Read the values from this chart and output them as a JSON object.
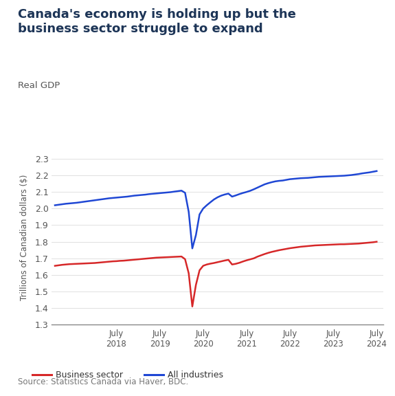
{
  "title": "Canada's economy is holding up but the\nbusiness sector struggle to expand",
  "subtitle": "Real GDP",
  "ylabel": "Trillions of Canadian dollars ($)",
  "source": "Source: Statistics Canada via Haver, BDC.",
  "title_color": "#1d3557",
  "subtitle_color": "#555555",
  "source_color": "#777777",
  "bg_color": "#ffffff",
  "ylim": [
    1.3,
    2.35
  ],
  "yticks": [
    1.3,
    1.4,
    1.5,
    1.6,
    1.7,
    1.8,
    1.9,
    2.0,
    2.1,
    2.2,
    2.3
  ],
  "line_blue_color": "#1f47d4",
  "line_red_color": "#d62728",
  "legend_labels": [
    "Business sector",
    "All industries"
  ],
  "all_industries": [
    [
      2017.083,
      2.02
    ],
    [
      2017.167,
      2.023
    ],
    [
      2017.25,
      2.026
    ],
    [
      2017.333,
      2.029
    ],
    [
      2017.417,
      2.031
    ],
    [
      2017.5,
      2.033
    ],
    [
      2017.583,
      2.035
    ],
    [
      2017.667,
      2.038
    ],
    [
      2017.75,
      2.041
    ],
    [
      2017.833,
      2.044
    ],
    [
      2017.917,
      2.047
    ],
    [
      2018.0,
      2.05
    ],
    [
      2018.083,
      2.053
    ],
    [
      2018.167,
      2.056
    ],
    [
      2018.25,
      2.059
    ],
    [
      2018.333,
      2.062
    ],
    [
      2018.417,
      2.064
    ],
    [
      2018.5,
      2.066
    ],
    [
      2018.583,
      2.068
    ],
    [
      2018.667,
      2.07
    ],
    [
      2018.75,
      2.072
    ],
    [
      2018.833,
      2.075
    ],
    [
      2018.917,
      2.078
    ],
    [
      2019.0,
      2.08
    ],
    [
      2019.083,
      2.082
    ],
    [
      2019.167,
      2.084
    ],
    [
      2019.25,
      2.087
    ],
    [
      2019.333,
      2.089
    ],
    [
      2019.417,
      2.091
    ],
    [
      2019.5,
      2.093
    ],
    [
      2019.583,
      2.095
    ],
    [
      2019.667,
      2.097
    ],
    [
      2019.75,
      2.099
    ],
    [
      2019.833,
      2.102
    ],
    [
      2019.917,
      2.105
    ],
    [
      2020.0,
      2.108
    ],
    [
      2020.083,
      2.095
    ],
    [
      2020.167,
      1.98
    ],
    [
      2020.25,
      1.76
    ],
    [
      2020.333,
      1.84
    ],
    [
      2020.417,
      1.965
    ],
    [
      2020.5,
      2.0
    ],
    [
      2020.583,
      2.02
    ],
    [
      2020.667,
      2.038
    ],
    [
      2020.75,
      2.055
    ],
    [
      2020.833,
      2.068
    ],
    [
      2020.917,
      2.078
    ],
    [
      2021.0,
      2.085
    ],
    [
      2021.083,
      2.09
    ],
    [
      2021.167,
      2.072
    ],
    [
      2021.25,
      2.079
    ],
    [
      2021.333,
      2.087
    ],
    [
      2021.417,
      2.094
    ],
    [
      2021.5,
      2.1
    ],
    [
      2021.583,
      2.107
    ],
    [
      2021.667,
      2.116
    ],
    [
      2021.75,
      2.126
    ],
    [
      2021.833,
      2.136
    ],
    [
      2021.917,
      2.146
    ],
    [
      2022.0,
      2.153
    ],
    [
      2022.083,
      2.159
    ],
    [
      2022.167,
      2.164
    ],
    [
      2022.25,
      2.167
    ],
    [
      2022.333,
      2.169
    ],
    [
      2022.417,
      2.173
    ],
    [
      2022.5,
      2.177
    ],
    [
      2022.583,
      2.179
    ],
    [
      2022.667,
      2.181
    ],
    [
      2022.75,
      2.183
    ],
    [
      2022.833,
      2.184
    ],
    [
      2022.917,
      2.185
    ],
    [
      2023.0,
      2.187
    ],
    [
      2023.083,
      2.189
    ],
    [
      2023.167,
      2.191
    ],
    [
      2023.25,
      2.192
    ],
    [
      2023.333,
      2.193
    ],
    [
      2023.417,
      2.194
    ],
    [
      2023.5,
      2.195
    ],
    [
      2023.583,
      2.196
    ],
    [
      2023.667,
      2.197
    ],
    [
      2023.75,
      2.198
    ],
    [
      2023.833,
      2.2
    ],
    [
      2023.917,
      2.202
    ],
    [
      2024.0,
      2.205
    ],
    [
      2024.083,
      2.208
    ],
    [
      2024.167,
      2.212
    ],
    [
      2024.25,
      2.215
    ],
    [
      2024.333,
      2.218
    ],
    [
      2024.417,
      2.222
    ],
    [
      2024.5,
      2.226
    ]
  ],
  "business_sector": [
    [
      2017.083,
      1.655
    ],
    [
      2017.167,
      1.658
    ],
    [
      2017.25,
      1.661
    ],
    [
      2017.333,
      1.663
    ],
    [
      2017.417,
      1.665
    ],
    [
      2017.5,
      1.666
    ],
    [
      2017.583,
      1.667
    ],
    [
      2017.667,
      1.668
    ],
    [
      2017.75,
      1.669
    ],
    [
      2017.833,
      1.67
    ],
    [
      2017.917,
      1.671
    ],
    [
      2018.0,
      1.672
    ],
    [
      2018.083,
      1.674
    ],
    [
      2018.167,
      1.676
    ],
    [
      2018.25,
      1.678
    ],
    [
      2018.333,
      1.68
    ],
    [
      2018.417,
      1.682
    ],
    [
      2018.5,
      1.683
    ],
    [
      2018.583,
      1.685
    ],
    [
      2018.667,
      1.686
    ],
    [
      2018.75,
      1.688
    ],
    [
      2018.833,
      1.69
    ],
    [
      2018.917,
      1.692
    ],
    [
      2019.0,
      1.694
    ],
    [
      2019.083,
      1.696
    ],
    [
      2019.167,
      1.698
    ],
    [
      2019.25,
      1.7
    ],
    [
      2019.333,
      1.702
    ],
    [
      2019.417,
      1.704
    ],
    [
      2019.5,
      1.705
    ],
    [
      2019.583,
      1.706
    ],
    [
      2019.667,
      1.707
    ],
    [
      2019.75,
      1.708
    ],
    [
      2019.833,
      1.709
    ],
    [
      2019.917,
      1.71
    ],
    [
      2020.0,
      1.711
    ],
    [
      2020.083,
      1.695
    ],
    [
      2020.167,
      1.61
    ],
    [
      2020.25,
      1.41
    ],
    [
      2020.333,
      1.54
    ],
    [
      2020.417,
      1.628
    ],
    [
      2020.5,
      1.655
    ],
    [
      2020.583,
      1.663
    ],
    [
      2020.667,
      1.668
    ],
    [
      2020.75,
      1.672
    ],
    [
      2020.833,
      1.677
    ],
    [
      2020.917,
      1.682
    ],
    [
      2021.0,
      1.687
    ],
    [
      2021.083,
      1.691
    ],
    [
      2021.167,
      1.663
    ],
    [
      2021.25,
      1.667
    ],
    [
      2021.333,
      1.673
    ],
    [
      2021.417,
      1.681
    ],
    [
      2021.5,
      1.688
    ],
    [
      2021.583,
      1.694
    ],
    [
      2021.667,
      1.7
    ],
    [
      2021.75,
      1.71
    ],
    [
      2021.833,
      1.718
    ],
    [
      2021.917,
      1.726
    ],
    [
      2022.0,
      1.733
    ],
    [
      2022.083,
      1.739
    ],
    [
      2022.167,
      1.744
    ],
    [
      2022.25,
      1.749
    ],
    [
      2022.333,
      1.753
    ],
    [
      2022.417,
      1.757
    ],
    [
      2022.5,
      1.761
    ],
    [
      2022.583,
      1.764
    ],
    [
      2022.667,
      1.767
    ],
    [
      2022.75,
      1.77
    ],
    [
      2022.833,
      1.772
    ],
    [
      2022.917,
      1.774
    ],
    [
      2023.0,
      1.776
    ],
    [
      2023.083,
      1.778
    ],
    [
      2023.167,
      1.779
    ],
    [
      2023.25,
      1.78
    ],
    [
      2023.333,
      1.781
    ],
    [
      2023.417,
      1.782
    ],
    [
      2023.5,
      1.783
    ],
    [
      2023.583,
      1.784
    ],
    [
      2023.667,
      1.785
    ],
    [
      2023.75,
      1.785
    ],
    [
      2023.833,
      1.786
    ],
    [
      2023.917,
      1.787
    ],
    [
      2024.0,
      1.788
    ],
    [
      2024.083,
      1.789
    ],
    [
      2024.167,
      1.791
    ],
    [
      2024.25,
      1.793
    ],
    [
      2024.333,
      1.795
    ],
    [
      2024.417,
      1.797
    ],
    [
      2024.5,
      1.8
    ]
  ],
  "xlim": [
    2017.0,
    2024.65
  ],
  "xtick_positions": [
    2018.5,
    2019.5,
    2020.5,
    2021.5,
    2022.5,
    2023.5,
    2024.5
  ],
  "xtick_labels": [
    "July\n2018",
    "July\n2019",
    "July\n2020",
    "July\n2021",
    "July\n2022",
    "July\n2023",
    "July\n2024"
  ]
}
